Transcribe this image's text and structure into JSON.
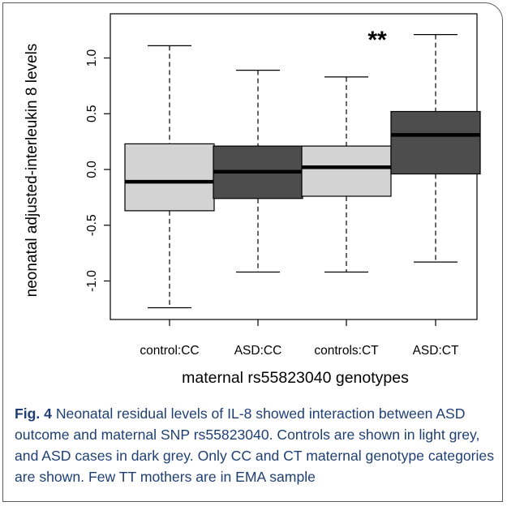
{
  "chart_data": {
    "type": "box",
    "ylabel": "neonatal adjusted-interleukin 8 levels",
    "xlabel": "maternal rs55823040 genotypes",
    "ylim": [
      -1.4,
      1.35
    ],
    "yticks": [
      "-1.0",
      "-0.5",
      "0.0",
      "0.5",
      "1.0"
    ],
    "ytick_values": [
      -1.0,
      -0.5,
      0.0,
      0.5,
      1.0
    ],
    "grid": false,
    "categories": [
      "control:CC",
      "ASD:CC",
      "controls:CT",
      "ASD:CT"
    ],
    "boxes": [
      {
        "name": "control:CC",
        "whisker_low": -1.24,
        "q1": -0.37,
        "median": -0.11,
        "q3": 0.23,
        "whisker_high": 1.11,
        "color": "#d3d3d3"
      },
      {
        "name": "ASD:CC",
        "whisker_low": -0.92,
        "q1": -0.26,
        "median": -0.02,
        "q3": 0.21,
        "whisker_high": 0.89,
        "color": "#4d4d4d"
      },
      {
        "name": "controls:CT",
        "whisker_low": -0.92,
        "q1": -0.24,
        "median": 0.02,
        "q3": 0.21,
        "whisker_high": 0.83,
        "color": "#d3d3d3"
      },
      {
        "name": "ASD:CT",
        "whisker_low": -0.83,
        "q1": -0.04,
        "median": 0.31,
        "q3": 0.52,
        "whisker_high": 1.21,
        "color": "#4d4d4d"
      }
    ],
    "annotations": [
      {
        "text": "**",
        "category": "ASD:CT",
        "y": 1.09
      }
    ]
  },
  "caption": {
    "label": "Fig. 4",
    "text": " Neonatal residual levels of IL-8 showed interaction between ASD outcome and maternal SNP rs55823040. Controls are shown in light grey, and ASD cases in dark grey. Only CC and CT maternal genotype categories are shown. Few TT mothers are in EMA sample"
  }
}
